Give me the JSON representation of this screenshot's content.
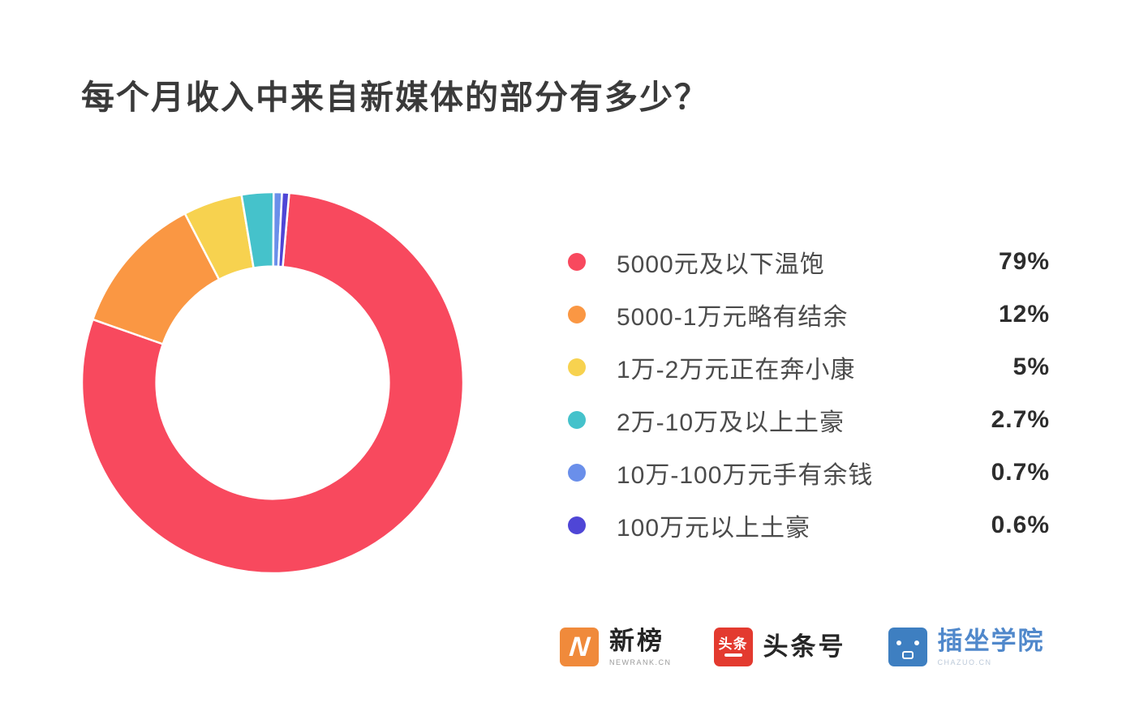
{
  "title": "每个月收入中来自新媒体的部分有多少？",
  "chart_data": {
    "type": "pie",
    "subtype": "donut",
    "title": "每个月收入中来自新媒体的部分有多少？",
    "legend_position": "right",
    "direction": "clockwise",
    "start_angle_deg": 5,
    "inner_radius_ratio": 0.61,
    "segments": [
      {
        "label": "5000元及以下温饱",
        "value_pct": 79,
        "display": "79%",
        "color": "#F8495E"
      },
      {
        "label": "5000-1万元略有结余",
        "value_pct": 12,
        "display": "12%",
        "color": "#FA9743"
      },
      {
        "label": "1万-2万元正在奔小康",
        "value_pct": 5,
        "display": "5%",
        "color": "#F7D24F"
      },
      {
        "label": "2万-10万及以上土豪",
        "value_pct": 2.7,
        "display": "2.7%",
        "color": "#45C2CB"
      },
      {
        "label": "10万-100万元手有余钱",
        "value_pct": 0.7,
        "display": "0.7%",
        "color": "#6A8FEA"
      },
      {
        "label": "100万元以上土豪",
        "value_pct": 0.6,
        "display": "0.6%",
        "color": "#4F46D6"
      }
    ]
  },
  "footer": {
    "logos": [
      {
        "name": "newrank",
        "icon_letter": "N",
        "icon_color": "#F08A3B",
        "text": "新榜",
        "subtext": "NEWRANK.CN"
      },
      {
        "name": "toutiao",
        "icon_chars": "头条",
        "icon_color": "#E33A2F",
        "text": "头条号"
      },
      {
        "name": "chazuo",
        "icon_color": "#3E7FC1",
        "text": "插坐学院",
        "text_color": "#5088CB",
        "subtext": "CHAZUO.CN"
      }
    ]
  }
}
